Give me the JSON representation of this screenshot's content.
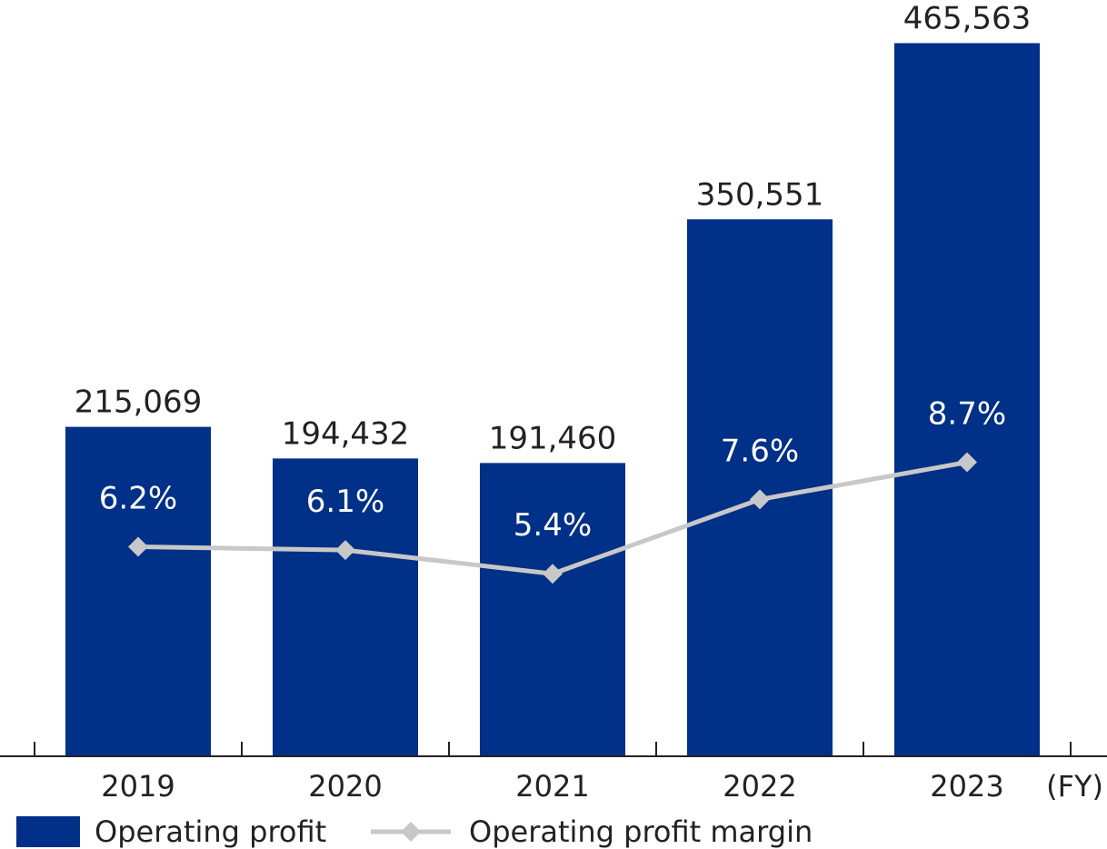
{
  "chart_data": {
    "type": "bar",
    "categories": [
      "2019",
      "2020",
      "2021",
      "2022",
      "2023"
    ],
    "x_unit_label": "(FY)",
    "series": [
      {
        "name": "Operating profit",
        "type": "bar",
        "values": [
          215069,
          194432,
          191460,
          350551,
          465563
        ],
        "value_labels": [
          "215,069",
          "194,432",
          "191,460",
          "350,551",
          "465,563"
        ],
        "color": "#003087"
      },
      {
        "name": "Operating profit margin",
        "type": "line",
        "values": [
          6.2,
          6.1,
          5.4,
          7.6,
          8.7
        ],
        "value_labels": [
          "6.2%",
          "6.1%",
          "5.4%",
          "7.6%",
          "8.7%"
        ],
        "unit": "%",
        "marker": "diamond",
        "color": "#c8c8c8"
      }
    ],
    "ylim": [
      0,
      470000
    ],
    "ylim_margin_percent": [
      0,
      21.3
    ],
    "grid": false,
    "legend_position": "bottom-left",
    "title": "",
    "xlabel": "",
    "ylabel": ""
  },
  "colors": {
    "bar": "#003087",
    "line": "#c8c8c8",
    "axis": "#222222",
    "text_dark": "#222222",
    "text_light": "#ffffff"
  }
}
